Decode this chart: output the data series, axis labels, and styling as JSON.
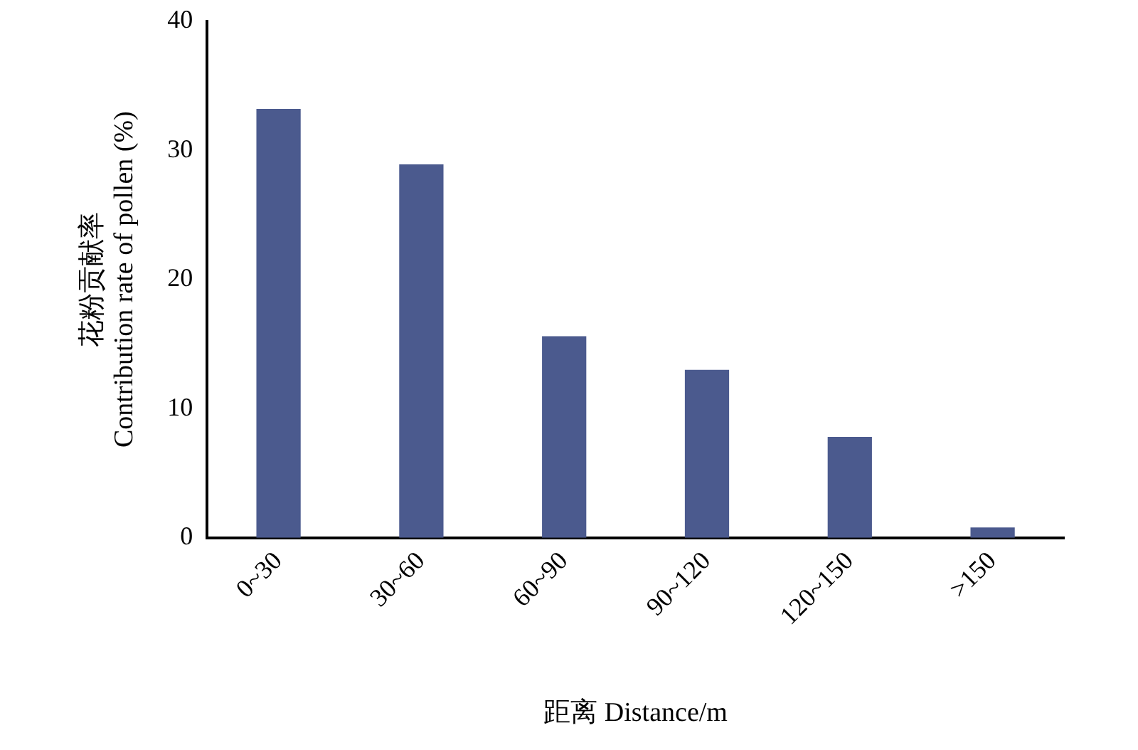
{
  "chart_data": {
    "type": "bar",
    "xlabel": "距离 Distance/m",
    "ylabel": "花粉贡献率\nContribution rate of pollen (%)",
    "categories": [
      "0~30",
      "30~60",
      "60~90",
      "90~120",
      "120~150",
      ">150"
    ],
    "values": [
      33.2,
      28.9,
      15.6,
      13.0,
      7.8,
      0.8
    ],
    "color": "#4b5a8e",
    "ylim": [
      0,
      40
    ],
    "yticks": [
      0,
      10,
      20,
      30,
      40
    ],
    "grid": false,
    "legend": false
  }
}
